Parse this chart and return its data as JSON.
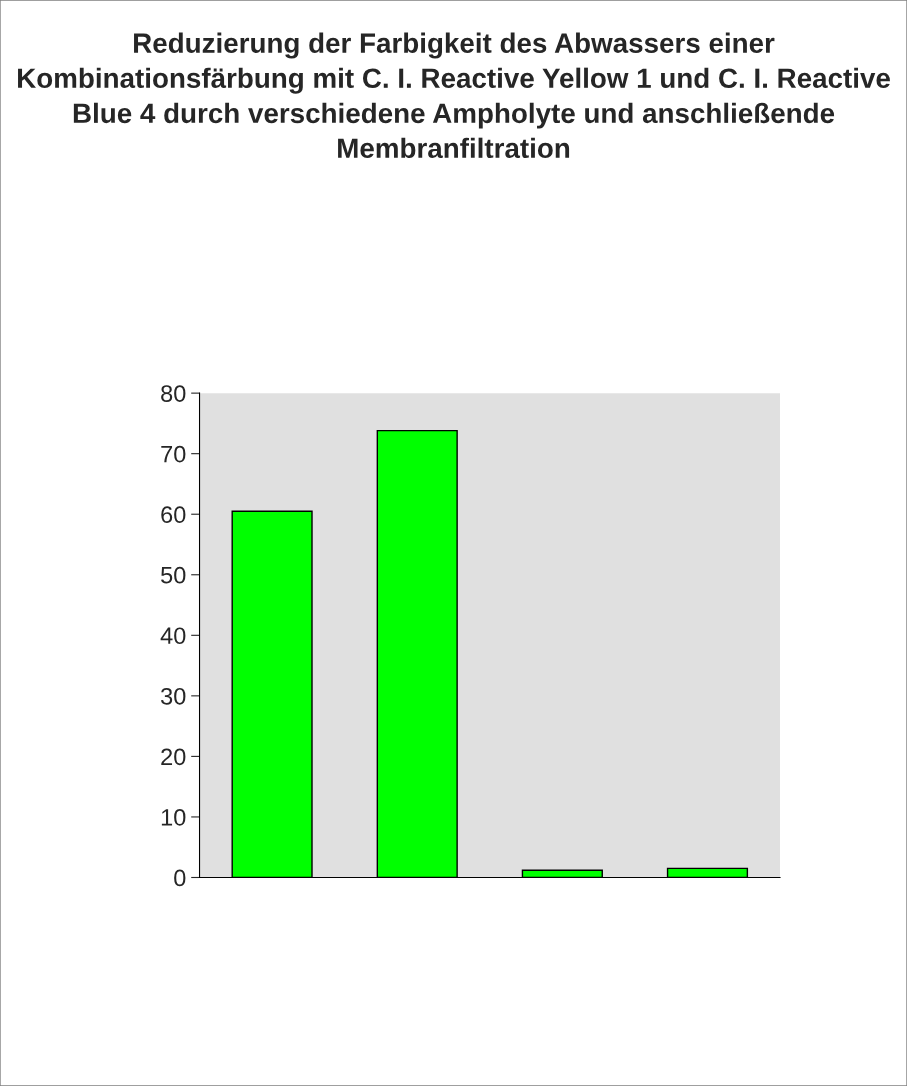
{
  "chart_data": {
    "type": "bar",
    "title": "Reduzierung der Farbigkeit des Abwassers einer Kombinationsfärbung mit C. I. Reactive Yellow 1 und C. I. Reactive Blue 4 durch verschiedene Ampholyte und anschließende Membranfiltration",
    "categories": [
      null,
      null,
      null,
      null
    ],
    "values": [
      60.5,
      73.8,
      1.2,
      1.5
    ],
    "color": "#00ff00",
    "ylim": [
      0,
      80
    ],
    "yticks": [
      0,
      10,
      20,
      30,
      40,
      50,
      60,
      70,
      80
    ],
    "grid": false
  }
}
